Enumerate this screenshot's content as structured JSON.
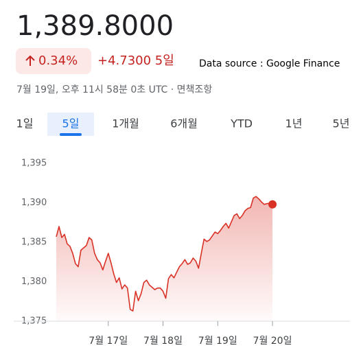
{
  "header": {
    "price": "1,389.8000",
    "change_percent": "0.34%",
    "change_period": "+4.7300 5일",
    "source_note": "Data source : Google Finance",
    "timestamp": "7월 19일, 오후 11시 58분 0초 UTC · 면책조항"
  },
  "tabs": {
    "items": [
      "1일",
      "5일",
      "1개월",
      "6개월",
      "YTD",
      "1년",
      "5년"
    ],
    "selected": 1
  },
  "chart_data": {
    "type": "line",
    "color": "#d93025",
    "values": [
      1385.7,
      1387.0,
      1385.6,
      1386.0,
      1384.8,
      1384.5,
      1383.6,
      1382.3,
      1381.9,
      1384.0,
      1384.3,
      1384.6,
      1385.6,
      1385.3,
      1383.6,
      1382.8,
      1382.4,
      1381.5,
      1382.6,
      1383.6,
      1382.4,
      1381.0,
      1379.9,
      1380.5,
      1379.1,
      1379.6,
      1379.2,
      1376.5,
      1376.3,
      1378.8,
      1377.6,
      1378.5,
      1379.9,
      1380.2,
      1379.6,
      1379.3,
      1379.0,
      1379.2,
      1379.2,
      1378.8,
      1377.9,
      1380.4,
      1380.9,
      1380.5,
      1381.2,
      1381.9,
      1382.3,
      1382.8,
      1382.2,
      1382.4,
      1383.0,
      1382.6,
      1381.7,
      1383.6,
      1385.4,
      1385.1,
      1385.3,
      1385.8,
      1386.3,
      1386.1,
      1386.5,
      1387.0,
      1387.4,
      1386.8,
      1387.6,
      1388.4,
      1388.6,
      1388.0,
      1388.4,
      1389.0,
      1389.3,
      1389.4,
      1390.6,
      1390.8,
      1390.5,
      1390.1,
      1389.8,
      1389.9,
      1389.9,
      1389.8
    ],
    "xlim": [
      0,
      79
    ],
    "xticks": [
      {
        "value": 19,
        "label": "7월 17일"
      },
      {
        "value": 39,
        "label": "7월 18일"
      },
      {
        "value": 59,
        "label": "7월 19일"
      },
      {
        "value": 79,
        "label": "7월 20일"
      }
    ],
    "ylim": [
      1375,
      1395
    ],
    "yticks": [
      {
        "value": 1375,
        "label": "1,375"
      },
      {
        "value": 1380,
        "label": "1,380"
      },
      {
        "value": 1385,
        "label": "1,385"
      },
      {
        "value": 1390,
        "label": "1,390"
      },
      {
        "value": 1395,
        "label": "1,395"
      }
    ]
  }
}
